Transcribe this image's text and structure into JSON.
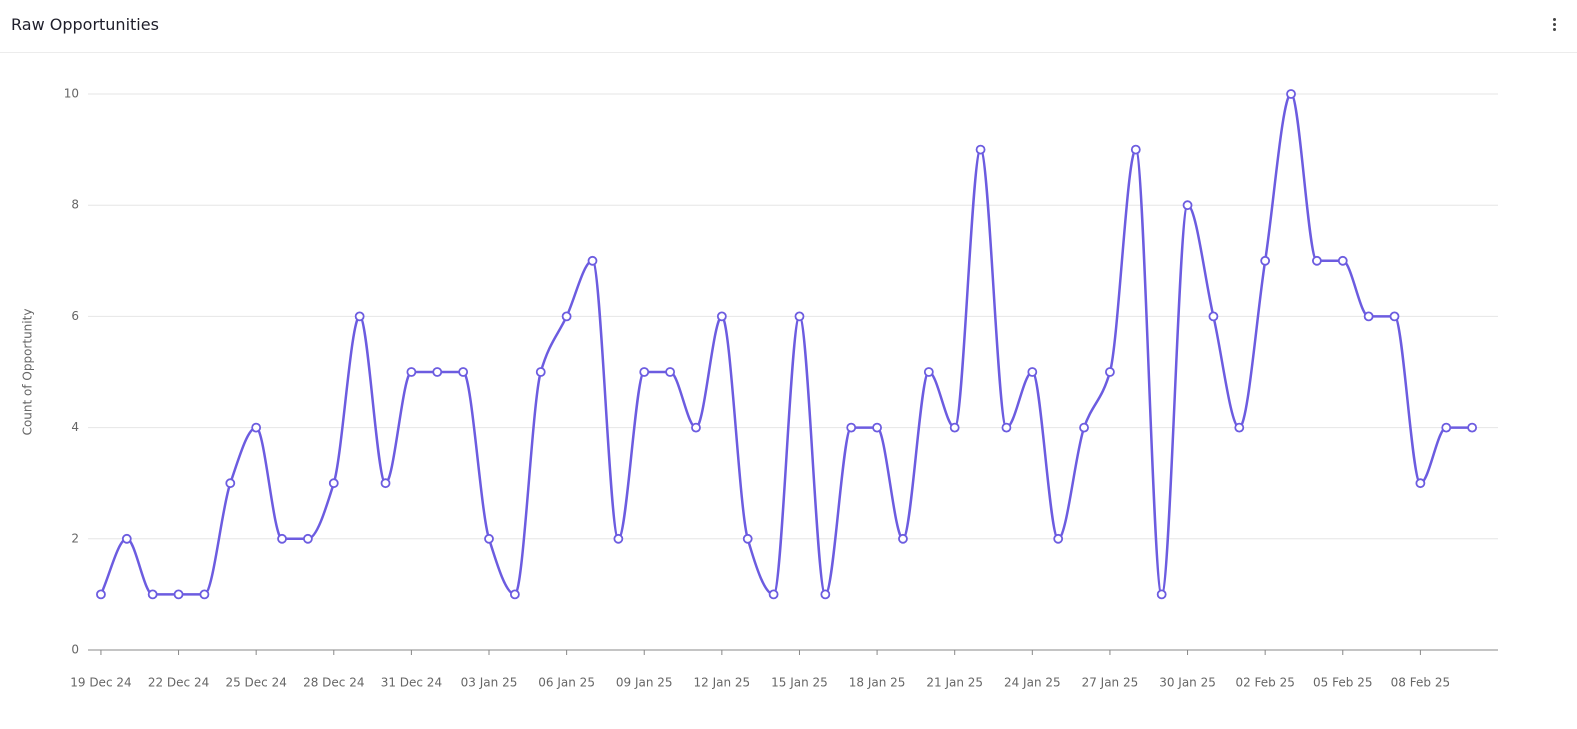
{
  "chart_data": {
    "type": "line",
    "title": "Raw Opportunities",
    "y_label": "Count of Opportunity",
    "color": "#6c5ce0",
    "x": [
      "2024-12-19",
      "2024-12-20",
      "2024-12-21",
      "2024-12-22",
      "2024-12-23",
      "2024-12-24",
      "2024-12-25",
      "2024-12-26",
      "2024-12-27",
      "2024-12-28",
      "2024-12-29",
      "2024-12-30",
      "2024-12-31",
      "2025-01-01",
      "2025-01-02",
      "2025-01-03",
      "2025-01-04",
      "2025-01-05",
      "2025-01-06",
      "2025-01-07",
      "2025-01-08",
      "2025-01-09",
      "2025-01-10",
      "2025-01-11",
      "2025-01-12",
      "2025-01-13",
      "2025-01-14",
      "2025-01-15",
      "2025-01-16",
      "2025-01-17",
      "2025-01-18",
      "2025-01-19",
      "2025-01-20",
      "2025-01-21",
      "2025-01-22",
      "2025-01-23",
      "2025-01-24",
      "2025-01-25",
      "2025-01-26",
      "2025-01-27",
      "2025-01-28",
      "2025-01-29",
      "2025-01-30",
      "2025-01-31",
      "2025-02-01",
      "2025-02-02",
      "2025-02-03",
      "2025-02-04",
      "2025-02-05",
      "2025-02-06",
      "2025-02-07",
      "2025-02-08",
      "2025-02-09",
      "2025-02-10"
    ],
    "values": [
      1,
      2,
      1,
      1,
      1,
      3,
      4,
      2,
      2,
      3,
      6,
      3,
      5,
      5,
      5,
      2,
      1,
      5,
      6,
      7,
      2,
      5,
      5,
      4,
      6,
      2,
      1,
      6,
      1,
      4,
      4,
      2,
      5,
      4,
      9,
      4,
      5,
      2,
      4,
      5,
      9,
      1,
      8,
      6,
      4,
      7,
      10,
      7,
      7,
      6,
      6,
      3,
      4,
      4
    ],
    "xlim": [
      "2024-12-18T12:00",
      "2025-02-11T00:00"
    ],
    "xticks": [
      {
        "value": "2024-12-19",
        "label": "19 Dec 24"
      },
      {
        "value": "2024-12-22",
        "label": "22 Dec 24"
      },
      {
        "value": "2024-12-25",
        "label": "25 Dec 24"
      },
      {
        "value": "2024-12-28",
        "label": "28 Dec 24"
      },
      {
        "value": "2024-12-31",
        "label": "31 Dec 24"
      },
      {
        "value": "2025-01-03",
        "label": "03 Jan 25"
      },
      {
        "value": "2025-01-06",
        "label": "06 Jan 25"
      },
      {
        "value": "2025-01-09",
        "label": "09 Jan 25"
      },
      {
        "value": "2025-01-12",
        "label": "12 Jan 25"
      },
      {
        "value": "2025-01-15",
        "label": "15 Jan 25"
      },
      {
        "value": "2025-01-18",
        "label": "18 Jan 25"
      },
      {
        "value": "2025-01-21",
        "label": "21 Jan 25"
      },
      {
        "value": "2025-01-24",
        "label": "24 Jan 25"
      },
      {
        "value": "2025-01-27",
        "label": "27 Jan 25"
      },
      {
        "value": "2025-01-30",
        "label": "30 Jan 25"
      },
      {
        "value": "2025-02-02",
        "label": "02 Feb 25"
      },
      {
        "value": "2025-02-05",
        "label": "05 Feb 25"
      },
      {
        "value": "2025-02-08",
        "label": "08 Feb 25"
      }
    ],
    "ylim": [
      0,
      10
    ],
    "yticks": [
      0,
      2,
      4,
      6,
      8,
      10
    ],
    "grid": true
  }
}
